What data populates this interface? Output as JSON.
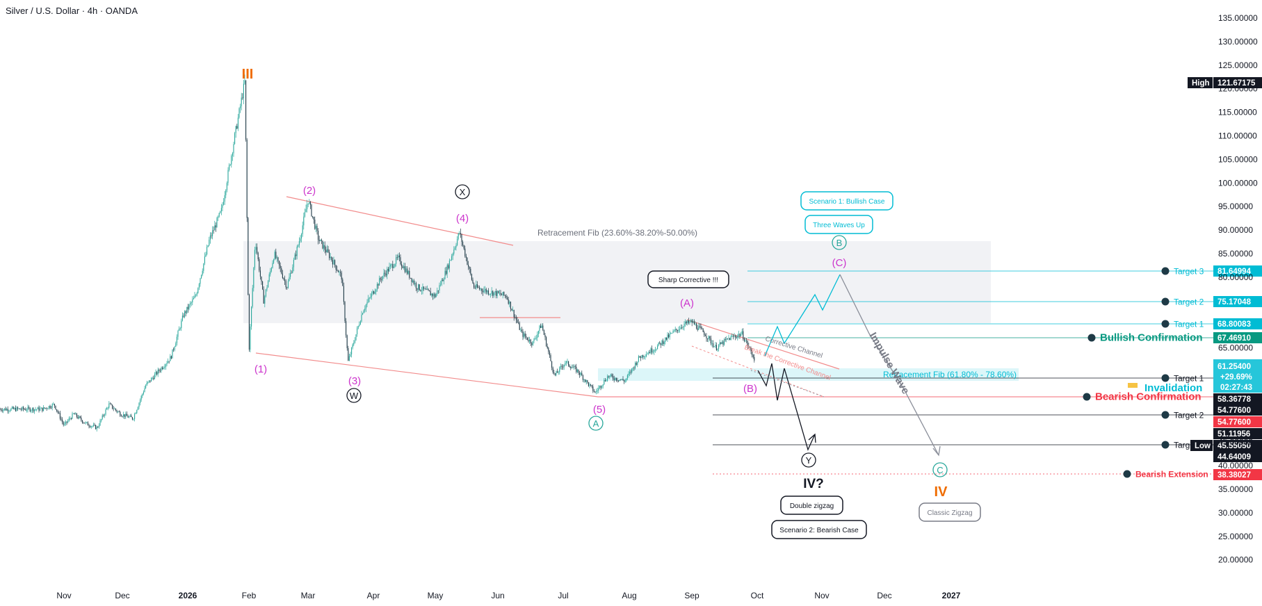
{
  "header": {
    "title": "Silver / U.S. Dollar · 4h · OANDA"
  },
  "chart_data": {
    "type": "candlestick",
    "title": "Silver / U.S. Dollar · 4h · OANDA",
    "ylim": [
      15,
      140
    ],
    "y_ticks": [
      "20.00000",
      "25.00000",
      "30.00000",
      "35.00000",
      "40.00000",
      "45.00000",
      "65.00000",
      "80.00000",
      "85.00000",
      "90.00000",
      "95.00000",
      "100.00000",
      "105.00000",
      "110.00000",
      "115.00000",
      "120.00000",
      "125.00000",
      "130.00000",
      "135.00000"
    ],
    "x_ticks": [
      "Nov",
      "Dec",
      "2026",
      "Feb",
      "Mar",
      "Apr",
      "May",
      "Jun",
      "Jul",
      "Aug",
      "Sep",
      "Oct",
      "Nov",
      "Dec",
      "2027"
    ],
    "price_path": [
      [
        "2025-10-21",
        52
      ],
      [
        "2025-10-27",
        53
      ],
      [
        "2025-11-01",
        48.5
      ],
      [
        "2025-11-06",
        51
      ],
      [
        "2025-11-12",
        49
      ],
      [
        "2025-11-18",
        48
      ],
      [
        "2025-11-24",
        53
      ],
      [
        "2025-11-30",
        51
      ],
      [
        "2025-12-06",
        50
      ],
      [
        "2025-12-12",
        57
      ],
      [
        "2025-12-18",
        60
      ],
      [
        "2025-12-24",
        63
      ],
      [
        "2025-12-30",
        72
      ],
      [
        "2026-01-05",
        76
      ],
      [
        "2026-01-12",
        88
      ],
      [
        "2026-01-18",
        94
      ],
      [
        "2026-01-24",
        108
      ],
      [
        "2026-01-30",
        121.67
      ],
      [
        "2026-02-01",
        64
      ],
      [
        "2026-02-04",
        88
      ],
      [
        "2026-02-08",
        75
      ],
      [
        "2026-02-13",
        85
      ],
      [
        "2026-02-19",
        78
      ],
      [
        "2026-02-25",
        88
      ],
      [
        "2026-03-01",
        96.5
      ],
      [
        "2026-03-06",
        88
      ],
      [
        "2026-03-12",
        84
      ],
      [
        "2026-03-17",
        80
      ],
      [
        "2026-03-20",
        62
      ],
      [
        "2026-03-27",
        73
      ],
      [
        "2026-04-05",
        80
      ],
      [
        "2026-04-13",
        84
      ],
      [
        "2026-04-22",
        78
      ],
      [
        "2026-05-01",
        76
      ],
      [
        "2026-05-07",
        82
      ],
      [
        "2026-05-13",
        89.5
      ],
      [
        "2026-05-20",
        78
      ],
      [
        "2026-05-27",
        77
      ],
      [
        "2026-06-05",
        76
      ],
      [
        "2026-06-12",
        68
      ],
      [
        "2026-06-17",
        66
      ],
      [
        "2026-06-21",
        70
      ],
      [
        "2026-06-27",
        59
      ],
      [
        "2026-07-02",
        62
      ],
      [
        "2026-07-08",
        60
      ],
      [
        "2026-07-16",
        55.5
      ],
      [
        "2026-07-22",
        59
      ],
      [
        "2026-07-30",
        58
      ],
      [
        "2026-08-06",
        63
      ],
      [
        "2026-08-14",
        65
      ],
      [
        "2026-08-22",
        68
      ],
      [
        "2026-08-28",
        70
      ],
      [
        "2026-09-01",
        70.5
      ],
      [
        "2026-09-07",
        68
      ],
      [
        "2026-09-12",
        65
      ],
      [
        "2026-09-18",
        67
      ],
      [
        "2026-09-24",
        68
      ],
      [
        "2026-09-30",
        62.5
      ]
    ],
    "wave_labels": [
      {
        "text": "III",
        "color": "#ef6c00"
      },
      {
        "text": "(1)",
        "color": "#cc33cc"
      },
      {
        "text": "(2)",
        "color": "#cc33cc"
      },
      {
        "text": "(3)",
        "color": "#cc33cc"
      },
      {
        "text": "W",
        "color": "#131722"
      },
      {
        "text": "X",
        "color": "#131722"
      },
      {
        "text": "(4)",
        "color": "#cc33cc"
      },
      {
        "text": "(5)",
        "color": "#cc33cc"
      },
      {
        "text": "A",
        "color": "#26a69a"
      },
      {
        "text": "(A)",
        "color": "#cc33cc"
      },
      {
        "text": "(B)",
        "color": "#cc33cc"
      },
      {
        "text": "(C)",
        "color": "#cc33cc"
      },
      {
        "text": "B",
        "color": "#26a69a"
      },
      {
        "text": "C",
        "color": "#26a69a"
      },
      {
        "text": "IV",
        "color": "#ef6c00"
      },
      {
        "text": "Y",
        "color": "#131722"
      },
      {
        "text": "IV?",
        "color": "#131722"
      }
    ],
    "annotations": [
      "Retracement Fib (23.60%-38.20%-50.00%)",
      "Retracement Fib (61.80% - 78.60%)",
      "Corrective Channel",
      "Break the Corrective Channel",
      "Impulse Wave"
    ],
    "callouts": [
      "Sharp Corrective !!!",
      "Scenario 1: Bullish Case",
      "Three Waves Up",
      "Double zigzag",
      "Scenario 2: Bearish Case",
      "Classic Zigzag"
    ],
    "levels": [
      {
        "name": "Target 3",
        "value": 81.64994,
        "label": "81.64994",
        "color": "#00bcd4"
      },
      {
        "name": "Target 2",
        "value": 75.17048,
        "label": "75.17048",
        "color": "#00bcd4"
      },
      {
        "name": "Target 1",
        "value": 68.80083,
        "label": "68.80083",
        "color": "#00bcd4"
      },
      {
        "name": "Bullish Confirmation",
        "value": 67.4691,
        "label": "67.46910",
        "color": "#089981"
      },
      {
        "name": "Target 1",
        "value": 58.36778,
        "label": "58.36778",
        "color": "#131722"
      },
      {
        "name": "Bearish Confirmation",
        "value": 54.776,
        "label": "54.77600",
        "color": "#f23645"
      },
      {
        "name": "Target 2",
        "value": 51.11956,
        "label": "51.11956",
        "color": "#131722"
      },
      {
        "name": "Targ",
        "value": 44.64009,
        "label": "44.64009",
        "color": "#131722"
      },
      {
        "name": "Bearish Extension",
        "value": 38.38027,
        "label": "38.38027",
        "color": "#f23645"
      }
    ],
    "invalidation": "Invalidation",
    "price_tags": {
      "high_label": "High",
      "high_value": "121.67175",
      "current_value": "61.25400",
      "change": "+29.69%",
      "countdown": "02:27:43",
      "low_label": "Low",
      "low_value": "45.55050",
      "alt_value": "54.77600"
    },
    "colors": {
      "candle_up": "#26a69a",
      "candle_dark": "#1e3a46",
      "trendline": "#f28b8b",
      "cyan": "#00bcd4",
      "bearish": "#f23645",
      "bullish": "#089981"
    }
  }
}
